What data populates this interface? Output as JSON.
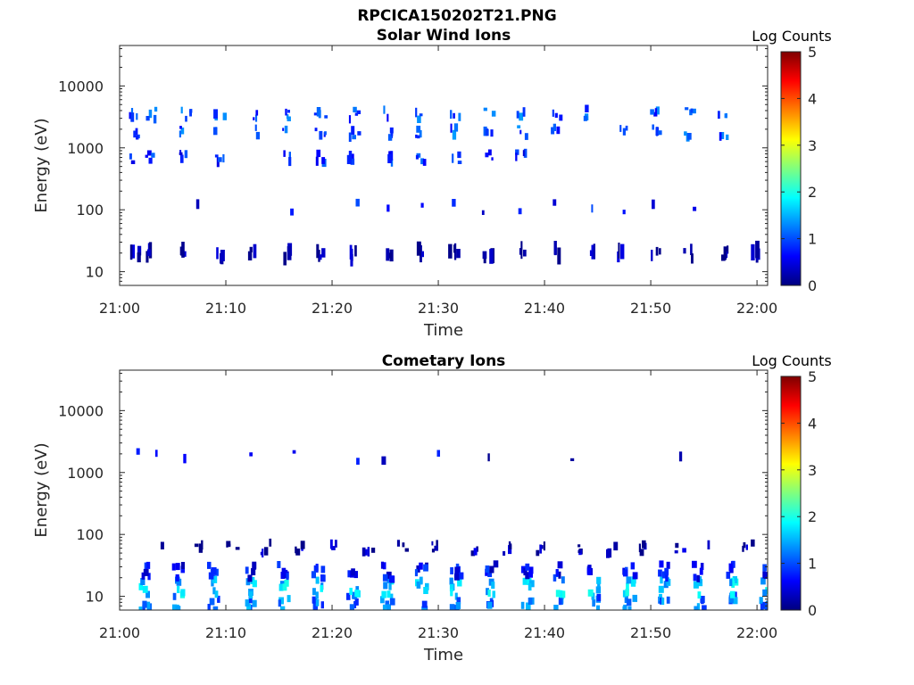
{
  "page": {
    "title": "RPCICA150202T21.PNG"
  },
  "colorbar": {
    "title": "Log Counts",
    "range": [
      0,
      5
    ],
    "ticks": [
      "0",
      "1",
      "2",
      "3",
      "4",
      "5"
    ],
    "colormap": [
      "#00007f",
      "#0000ff",
      "#007fff",
      "#00ffff",
      "#7fff7f",
      "#ffff00",
      "#ff7f00",
      "#ff0000",
      "#7f0000"
    ]
  },
  "chart_data": [
    {
      "type": "heatmap",
      "title": "Solar Wind Ions",
      "xlabel": "Time",
      "ylabel": "Energy (eV)",
      "xlim": [
        "21:00",
        "22:01"
      ],
      "ylim": [
        6,
        45000
      ],
      "yscale": "log",
      "x_ticks": [
        "21:00",
        "21:10",
        "21:20",
        "21:30",
        "21:40",
        "21:50",
        "22:00"
      ],
      "y_ticks": [
        {
          "value": 10,
          "label": "10"
        },
        {
          "value": 100,
          "label": "100"
        },
        {
          "value": 1000,
          "label": "1000"
        },
        {
          "value": 10000,
          "label": "10000"
        }
      ],
      "grid": false,
      "colorbar_label": "Log Counts",
      "sweep_start_minutes": [
        1.0,
        2.5,
        5.8,
        9.0,
        12.2,
        15.3,
        18.5,
        21.6,
        24.8,
        28.0,
        31.1,
        34.3,
        37.4,
        40.6,
        43.8,
        46.9,
        50.1,
        53.2,
        56.4,
        59.6
      ],
      "clusters": [
        {
          "energy_ev": 20,
          "level": 0.1,
          "minutes": [
            1.0,
            2.5,
            5.8,
            9.0,
            12.2,
            15.3,
            18.5,
            21.6,
            24.8,
            28.0,
            31.1,
            34.3,
            37.4,
            40.6,
            43.8,
            46.9,
            50.1,
            53.2,
            56.4,
            59.6
          ]
        },
        {
          "energy_ev": 700,
          "level": 0.8,
          "minutes": [
            1.0,
            2.5,
            5.8,
            9.0,
            15.3,
            18.5,
            21.6,
            24.8,
            28.0,
            31.1,
            34.3,
            37.4
          ]
        },
        {
          "energy_ev": 1800,
          "level": 1.0,
          "minutes": [
            1.0,
            5.8,
            9.0,
            12.2,
            15.3,
            18.5,
            21.6,
            24.8,
            28.0,
            31.1,
            34.3,
            37.4,
            40.6,
            46.9,
            50.1,
            53.2,
            56.4
          ]
        },
        {
          "energy_ev": 3500,
          "level": 1.0,
          "minutes": [
            1.0,
            2.5,
            5.8,
            9.0,
            12.2,
            15.3,
            18.5,
            21.6,
            24.8,
            28.0,
            31.1,
            34.3,
            37.4,
            40.6,
            43.8,
            50.1,
            53.2,
            56.4
          ]
        },
        {
          "energy_ev": 110,
          "level": 0.6,
          "minutes": [
            6.6,
            15.8,
            21.6,
            24.8,
            28.0,
            31.1,
            34.3,
            37.4,
            40.6,
            43.8,
            46.9,
            50.1,
            53.2
          ]
        }
      ]
    },
    {
      "type": "heatmap",
      "title": "Cometary Ions",
      "xlabel": "Time",
      "ylabel": "Energy (eV)",
      "xlim": [
        "21:00",
        "22:01"
      ],
      "ylim": [
        6,
        45000
      ],
      "yscale": "log",
      "x_ticks": [
        "21:00",
        "21:10",
        "21:20",
        "21:30",
        "21:40",
        "21:50",
        "22:00"
      ],
      "y_ticks": [
        {
          "value": 10,
          "label": "10"
        },
        {
          "value": 100,
          "label": "100"
        },
        {
          "value": 1000,
          "label": "1000"
        },
        {
          "value": 10000,
          "label": "10000"
        }
      ],
      "grid": false,
      "colorbar_label": "Log Counts",
      "sweep_start_minutes": [
        1.9,
        5.1,
        8.4,
        11.7,
        15.0,
        18.2,
        21.5,
        24.7,
        28.0,
        31.2,
        34.5,
        37.8,
        41.0,
        44.2,
        47.5,
        50.8,
        54.0,
        57.2,
        60.4
      ],
      "clusters": [
        {
          "energy_ev": 8,
          "level": 1.2,
          "minutes": [
            1.9,
            5.1,
            8.4,
            11.7,
            15.0,
            18.2,
            21.5,
            24.7,
            28.0,
            31.2,
            34.5,
            37.8,
            41.0,
            44.2,
            47.5,
            50.8,
            54.0,
            57.2,
            60.4
          ]
        },
        {
          "energy_ev": 14,
          "level": 1.6,
          "minutes": [
            1.9,
            5.1,
            8.4,
            11.7,
            15.0,
            18.2,
            21.5,
            24.7,
            28.0,
            31.2,
            34.5,
            37.8,
            41.0,
            44.2,
            47.5,
            50.8,
            54.0,
            57.2,
            60.4
          ]
        },
        {
          "energy_ev": 25,
          "level": 0.6,
          "minutes": [
            1.9,
            5.1,
            8.4,
            11.7,
            15.0,
            18.2,
            21.5,
            24.7,
            28.0,
            31.2,
            34.5,
            37.8,
            41.0,
            44.2,
            47.5,
            50.8,
            54.0,
            57.2,
            60.4
          ]
        },
        {
          "energy_ev": 60,
          "level": 0.2,
          "minutes": [
            3.5,
            7.0,
            10.2,
            13.4,
            16.6,
            19.8,
            23.0,
            26.2,
            29.5,
            32.8,
            36.0,
            39.2,
            42.5,
            45.7,
            49.0,
            52.2,
            55.5,
            58.7
          ]
        },
        {
          "energy_ev": 1800,
          "level": 0.4,
          "minutes": [
            1.2,
            2.8,
            6.0,
            9.2,
            12.2,
            15.5,
            21.5,
            24.8,
            30.0,
            34.0,
            39.0,
            42.5,
            52.0,
            55.5
          ]
        }
      ]
    }
  ]
}
